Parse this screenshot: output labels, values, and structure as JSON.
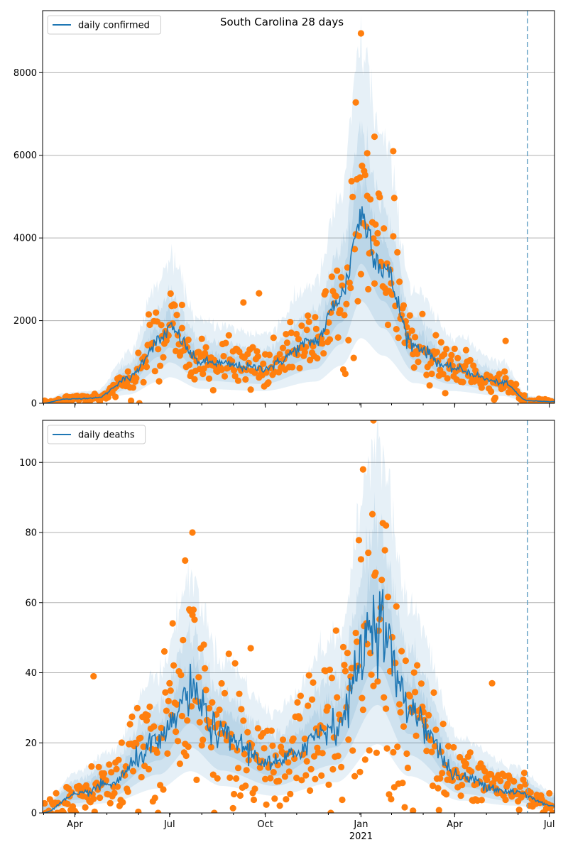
{
  "figure_title": "South Carolina 28 days",
  "colors": {
    "line": "#1f77b4",
    "points": "#ff7f0e",
    "band": "#1f77b4",
    "grid": "#b0b0b0",
    "vline": "#6fa8c9"
  },
  "x_axis": {
    "ticks": [
      {
        "label": "Apr",
        "day": 19
      },
      {
        "label": "Jul",
        "day": 110
      },
      {
        "label": "Oct",
        "day": 202
      },
      {
        "label": "Jan",
        "day": 294
      },
      {
        "label": "Apr",
        "day": 384
      },
      {
        "label": "Jul",
        "day": 475
      }
    ],
    "year_label": "2021",
    "range_days": [
      -12,
      480
    ],
    "forecast_start_day": 454
  },
  "chart_data": [
    {
      "type": "line",
      "legend": "daily confirmed",
      "xlim": [
        -12,
        480
      ],
      "ylim": [
        0,
        9500
      ],
      "yticks": [
        0,
        2000,
        4000,
        6000,
        8000
      ],
      "grid": "y",
      "legend_placement": "top-left",
      "peaks": [
        {
          "day": -12,
          "value": 0
        },
        {
          "day": 10,
          "value": 100
        },
        {
          "day": 40,
          "value": 130
        },
        {
          "day": 70,
          "value": 600
        },
        {
          "day": 100,
          "value": 1500
        },
        {
          "day": 110,
          "value": 1800
        },
        {
          "day": 140,
          "value": 1000
        },
        {
          "day": 200,
          "value": 850
        },
        {
          "day": 250,
          "value": 1500
        },
        {
          "day": 275,
          "value": 2600
        },
        {
          "day": 294,
          "value": 4500
        },
        {
          "day": 315,
          "value": 3300
        },
        {
          "day": 345,
          "value": 1400
        },
        {
          "day": 380,
          "value": 850
        },
        {
          "day": 430,
          "value": 500
        },
        {
          "day": 455,
          "value": 60
        },
        {
          "day": 480,
          "value": 40
        }
      ],
      "sample_points": [
        {
          "day": 294,
          "value": 8950
        },
        {
          "day": 289,
          "value": 7280
        },
        {
          "day": 307,
          "value": 6450
        },
        {
          "day": 325,
          "value": 6100
        },
        {
          "day": 300,
          "value": 6050
        },
        {
          "day": 196,
          "value": 2660
        },
        {
          "day": 181,
          "value": 2440
        },
        {
          "day": 433,
          "value": 1510
        },
        {
          "day": 122,
          "value": 2380
        }
      ]
    },
    {
      "type": "line",
      "legend": "daily deaths",
      "xlim": [
        -12,
        480
      ],
      "ylim": [
        0,
        112
      ],
      "yticks": [
        0,
        20,
        40,
        60,
        80,
        100
      ],
      "grid": "y",
      "legend_placement": "top-left",
      "peaks": [
        {
          "day": -12,
          "value": 0
        },
        {
          "day": 20,
          "value": 5
        },
        {
          "day": 50,
          "value": 8
        },
        {
          "day": 100,
          "value": 20
        },
        {
          "day": 130,
          "value": 34
        },
        {
          "day": 160,
          "value": 22
        },
        {
          "day": 210,
          "value": 14
        },
        {
          "day": 270,
          "value": 25
        },
        {
          "day": 310,
          "value": 56
        },
        {
          "day": 340,
          "value": 30
        },
        {
          "day": 390,
          "value": 10
        },
        {
          "day": 440,
          "value": 6
        },
        {
          "day": 480,
          "value": 2
        }
      ],
      "sample_points": [
        {
          "day": 306,
          "value": 112
        },
        {
          "day": 296,
          "value": 98
        },
        {
          "day": 318,
          "value": 82
        },
        {
          "day": 132,
          "value": 80
        },
        {
          "day": 125,
          "value": 72
        },
        {
          "day": 37,
          "value": 39
        },
        {
          "day": 420,
          "value": 37
        },
        {
          "day": 188,
          "value": 47
        }
      ]
    }
  ]
}
